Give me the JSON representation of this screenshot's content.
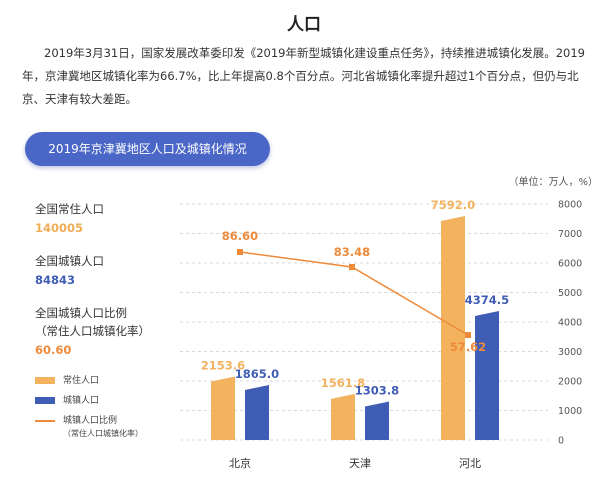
{
  "title": "人口",
  "paragraphs": [
    "2019年3月31日，国家发展改革委印发《2019年新型城镇化建设重点任务》，持续推进城镇化发展。2019年，京津冀地区城镇化率为66.7%，比上年提高0.8个百分点。河北省城镇化率提升超过1个百分点，但仍与北京、天津有较大差距。"
  ],
  "pill_title": "2019年京津冀地区人口及城镇化情况",
  "unit_note": "（单位：万人，%）",
  "stats": [
    {
      "label": "全国常住人口",
      "value": "140005",
      "color": "#f0ad54"
    },
    {
      "label": "全国城镇人口",
      "value": "84843",
      "color": "#3f5db5"
    },
    {
      "label": "全国城镇人口比例",
      "label2": "（常住人口城镇化率）",
      "value": "60.60",
      "color": "#ee8a3c"
    }
  ],
  "legend": [
    {
      "label": "常住人口",
      "type": "bar",
      "color": "#f3b35e"
    },
    {
      "label": "城镇人口",
      "type": "bar",
      "color": "#3f5db5"
    },
    {
      "label": "城镇人口比例",
      "label2": "（常住人口城镇化率）",
      "type": "line",
      "color": "#ef8a3a"
    }
  ],
  "chart_data": {
    "type": "bar",
    "categories": [
      "北京",
      "天津",
      "河北"
    ],
    "series": [
      {
        "name": "常住人口",
        "values": [
          2153.6,
          1561.8,
          7592.0
        ],
        "color": "#f3b35e",
        "labels": [
          "2153.6",
          "1561.8",
          "7592.0"
        ]
      },
      {
        "name": "城镇人口",
        "values": [
          1865.0,
          1303.8,
          4374.5
        ],
        "color": "#3f5db5",
        "labels": [
          "1865.0",
          "1303.8",
          "4374.5"
        ]
      }
    ],
    "line_series": {
      "name": "城镇人口比例",
      "values": [
        86.6,
        83.48,
        57.62
      ],
      "labels": [
        "86.60",
        "83.48",
        "57.62"
      ],
      "color": "#ef8a3a"
    },
    "y_axis": {
      "min": 0,
      "max": 8000,
      "ticks": [
        "0",
        "1000",
        "2000",
        "3000",
        "4000",
        "5000",
        "6000",
        "7000",
        "8000"
      ]
    },
    "grid": true
  }
}
